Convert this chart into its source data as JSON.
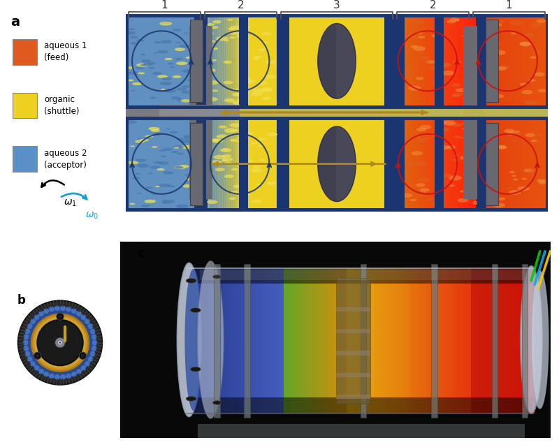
{
  "panel_a_label": "a",
  "panel_b_label": "b",
  "panel_c_label": "c",
  "section_labels": [
    "1",
    "2",
    "3",
    "2",
    "1"
  ],
  "legend_items": [
    {
      "label": "aqueous 1\n(feed)",
      "color": "#E05A20"
    },
    {
      "label": "organic\n(shuttle)",
      "color": "#EDD020"
    },
    {
      "label": "aqueous 2\n(acceptor)",
      "color": "#5A90C8"
    }
  ],
  "colors": {
    "blue_dark": "#1A3570",
    "blue_mid": "#3A6AB0",
    "blue_light": "#5A90C8",
    "blue_zone": "#6090C0",
    "yellow": "#EDD020",
    "yellow_light": "#F5E060",
    "orange": "#E07820",
    "orange_dark": "#C84010",
    "red_zone": "#D83010",
    "gray_wall": "#606878",
    "gray_dark": "#484858",
    "gray_mid": "#909090",
    "gray_light": "#C0C0C0",
    "olive": "#A07810",
    "olive_arrow": "#B08820",
    "background": "#FFFFFF",
    "blue_droplet": "#4878B0",
    "yellow_droplet": "#F0E050"
  }
}
